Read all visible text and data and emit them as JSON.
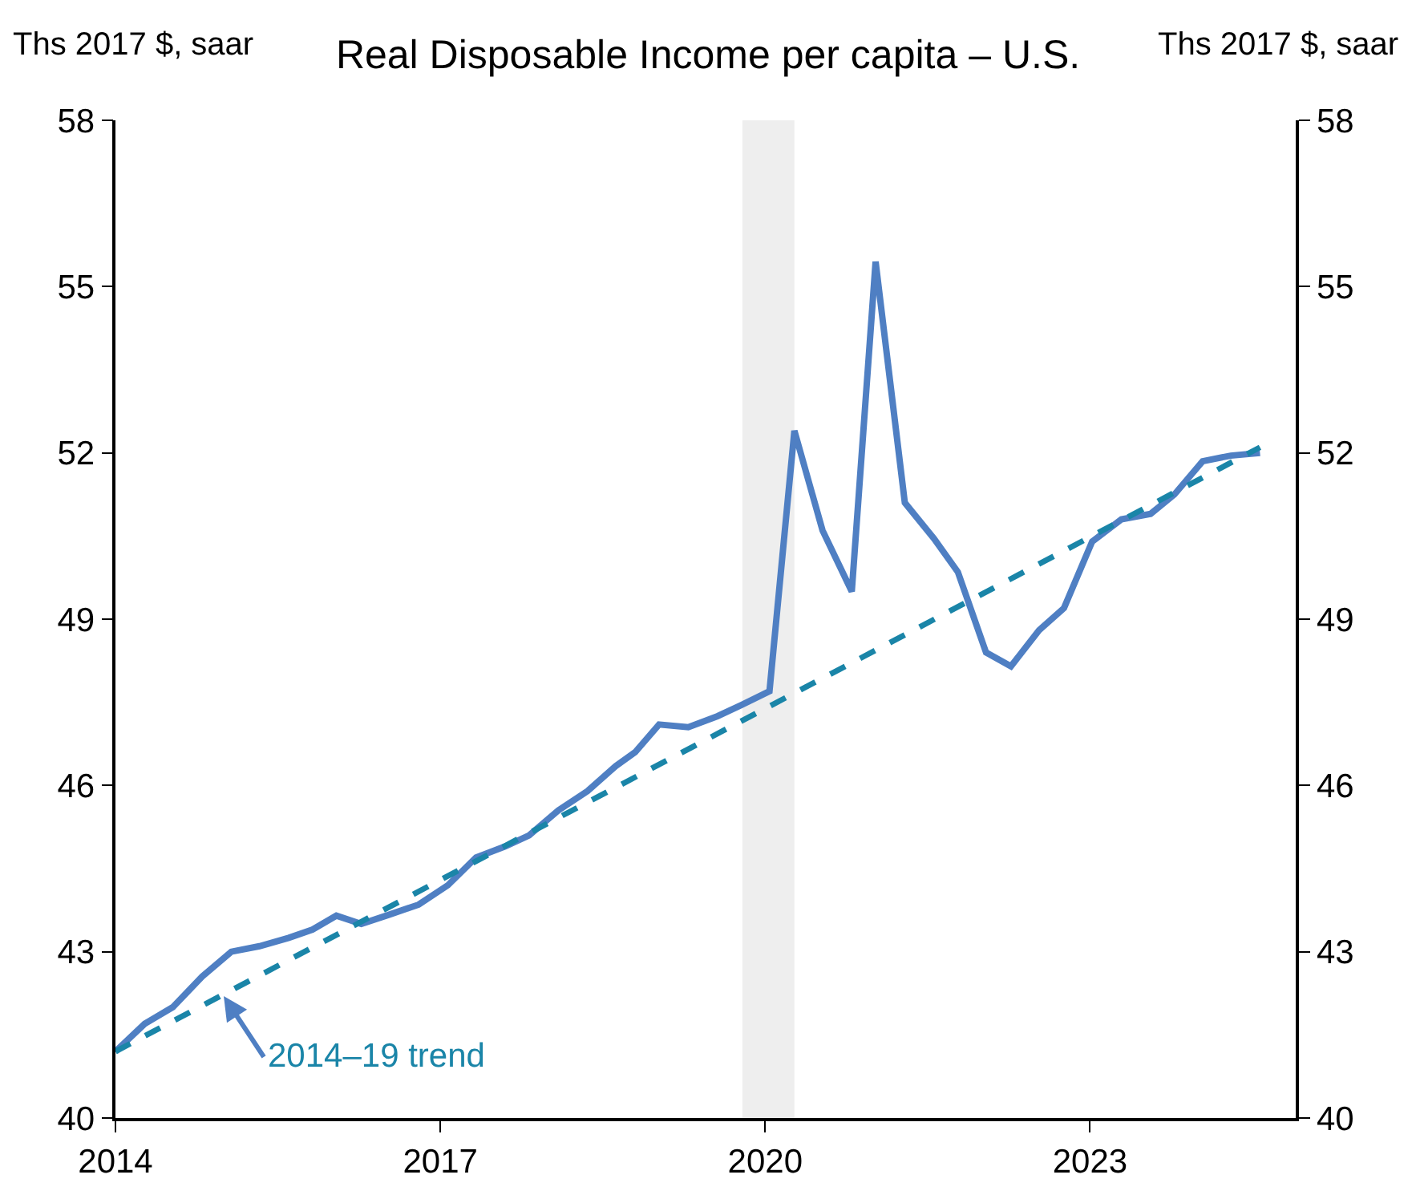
{
  "chart_data": {
    "type": "line",
    "title": "Real Disposable Income per capita – U.S.",
    "ylabel": "Ths 2017 $, saar",
    "y2label": "Ths 2017 $, saar",
    "x": [
      2014.0,
      2014.27,
      2014.53,
      2014.8,
      2015.07,
      2015.33,
      2015.6,
      2015.82,
      2016.04,
      2016.27,
      2016.53,
      2016.8,
      2017.07,
      2017.33,
      2017.6,
      2017.82,
      2018.09,
      2018.36,
      2018.62,
      2018.8,
      2019.02,
      2019.29,
      2019.56,
      2019.78,
      2020.04,
      2020.27,
      2020.53,
      2020.8,
      2021.02,
      2021.29,
      2021.56,
      2021.78,
      2022.04,
      2022.27,
      2022.53,
      2022.76,
      2023.02,
      2023.29,
      2023.56,
      2023.78,
      2024.04,
      2024.3,
      2024.57
    ],
    "series": [
      {
        "color": "#4f7fc3",
        "line_style": "solid",
        "values": [
          41.2,
          41.7,
          42.0,
          42.55,
          43.0,
          43.1,
          43.25,
          43.4,
          43.65,
          43.5,
          43.67,
          43.85,
          44.2,
          44.7,
          44.9,
          45.1,
          45.55,
          45.9,
          46.35,
          46.6,
          47.1,
          47.05,
          47.25,
          47.45,
          47.7,
          52.4,
          50.6,
          49.5,
          55.45,
          51.1,
          50.45,
          49.85,
          48.4,
          48.15,
          48.8,
          49.2,
          50.4,
          50.8,
          50.9,
          51.25,
          51.85,
          51.95,
          52.0
        ]
      },
      {
        "type": "line",
        "color": "#1a85a8",
        "line_style": "dashed",
        "x": [
          2014.0,
          2024.57
        ],
        "values": [
          41.2,
          52.1
        ]
      }
    ],
    "annotations": [
      {
        "text": "2014–19 trend",
        "x": 2015.0,
        "y": 42.2
      }
    ],
    "bands": [
      {
        "axis": "x",
        "from": 2019.79,
        "to": 2020.27,
        "color": "#eeeeee"
      }
    ],
    "xlim": [
      2014,
      2024.9
    ],
    "xticks": [
      2014,
      2017,
      2020,
      2023
    ],
    "ylim": [
      40,
      58
    ],
    "yticks": [
      40,
      43,
      46,
      49,
      52,
      55,
      58
    ],
    "y2lim": [
      40,
      58
    ],
    "y2ticks": [
      40,
      43,
      46,
      49,
      52,
      55,
      58
    ],
    "grid": false,
    "marker": "none"
  }
}
